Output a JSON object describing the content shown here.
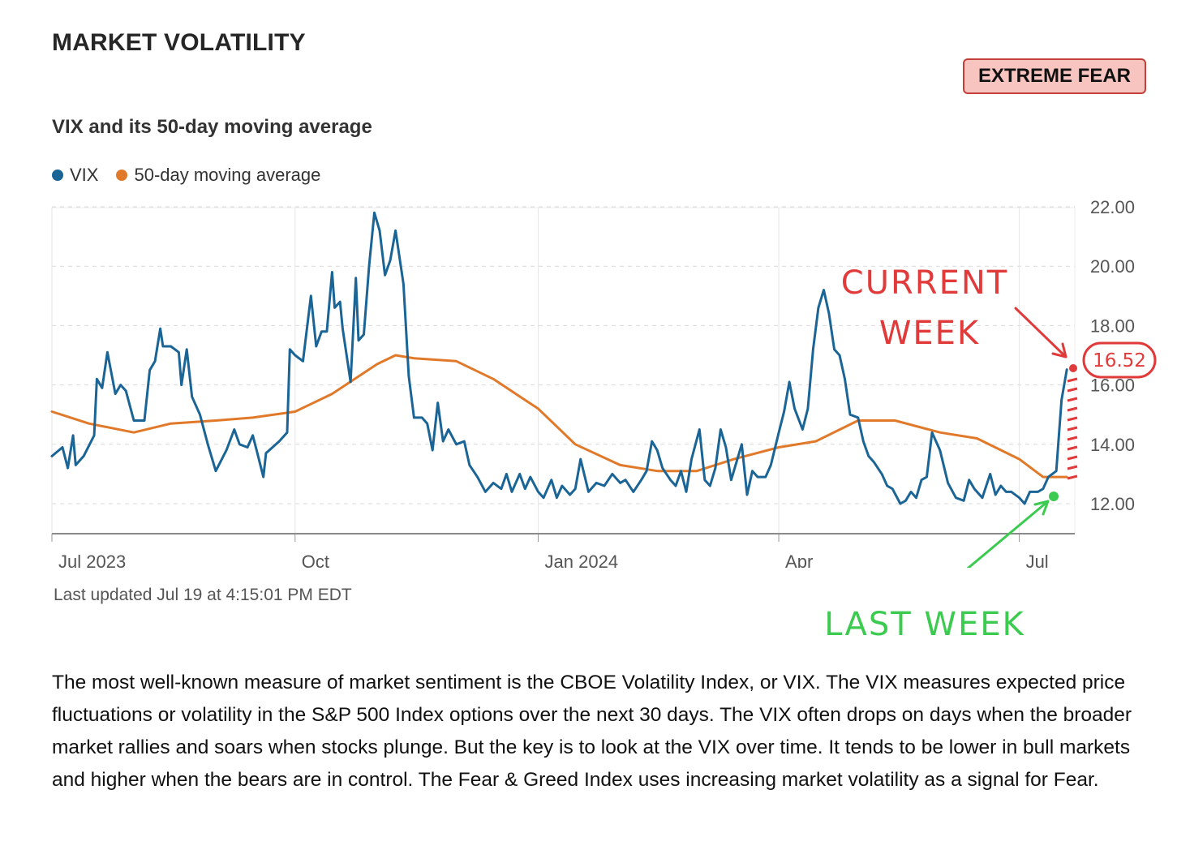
{
  "page": {
    "title": "MARKET VOLATILITY",
    "status_badge": "EXTREME FEAR",
    "last_updated": "Last updated Jul 19 at 4:15:01 PM EDT",
    "description": "The most well-known measure of market sentiment is the CBOE Volatility Index, or VIX. The VIX measures expected price fluctuations or volatility in the S&P 500 Index options over the next 30 days. The VIX often drops on days when the broader market rallies and soars when stocks plunge. But the key is to look at the VIX over time. It tends to be lower in bull markets and higher when the bears are in control. The Fear & Greed Index uses increasing market volatility as a signal for Fear."
  },
  "colors": {
    "vix": "#1b6596",
    "ma": "#e07a2a",
    "badge_bg": "#f8c4c0",
    "annotation_red": "#e03a3a",
    "annotation_green": "#3ccb50"
  },
  "annotations": {
    "current_week_line1": "CURRENT",
    "current_week_line2": "WEEK",
    "last_week": "LAST WEEK",
    "current_value": "16.52"
  },
  "chart_data": {
    "type": "line",
    "title": "VIX and its 50-day moving average",
    "legend_position": "top-left",
    "y_axis_side": "right",
    "grid": true,
    "ylim": [
      11,
      22
    ],
    "x_range": [
      "2023-07-01",
      "2024-07-22"
    ],
    "y_ticks": [
      "22.00",
      "20.00",
      "18.00",
      "16.00",
      "14.00",
      "12.00"
    ],
    "y_tick_values": [
      22,
      20,
      18,
      16,
      14,
      12
    ],
    "x_ticks": [
      {
        "label": "Jul 2023",
        "date": "2023-07-01"
      },
      {
        "label": "Oct",
        "date": "2023-10-01"
      },
      {
        "label": "Jan 2024",
        "date": "2024-01-01"
      },
      {
        "label": "Apr",
        "date": "2024-04-01"
      },
      {
        "label": "Jul",
        "date": "2024-07-01"
      }
    ],
    "series": [
      {
        "name": "VIX",
        "color": "#1b6596",
        "points": [
          [
            "2023-07-01",
            13.6
          ],
          [
            "2023-07-05",
            13.9
          ],
          [
            "2023-07-07",
            13.2
          ],
          [
            "2023-07-09",
            14.3
          ],
          [
            "2023-07-10",
            13.3
          ],
          [
            "2023-07-13",
            13.6
          ],
          [
            "2023-07-17",
            14.3
          ],
          [
            "2023-07-18",
            16.2
          ],
          [
            "2023-07-20",
            15.9
          ],
          [
            "2023-07-22",
            17.1
          ],
          [
            "2023-07-25",
            15.7
          ],
          [
            "2023-07-27",
            16.0
          ],
          [
            "2023-07-29",
            15.8
          ],
          [
            "2023-08-01",
            14.8
          ],
          [
            "2023-08-05",
            14.8
          ],
          [
            "2023-08-07",
            16.5
          ],
          [
            "2023-08-09",
            16.8
          ],
          [
            "2023-08-11",
            17.9
          ],
          [
            "2023-08-12",
            17.3
          ],
          [
            "2023-08-15",
            17.3
          ],
          [
            "2023-08-18",
            17.1
          ],
          [
            "2023-08-19",
            16.0
          ],
          [
            "2023-08-21",
            17.2
          ],
          [
            "2023-08-23",
            15.6
          ],
          [
            "2023-08-26",
            15.0
          ],
          [
            "2023-08-29",
            14.0
          ],
          [
            "2023-09-01",
            13.1
          ],
          [
            "2023-09-05",
            13.8
          ],
          [
            "2023-09-08",
            14.5
          ],
          [
            "2023-09-10",
            14.0
          ],
          [
            "2023-09-13",
            13.9
          ],
          [
            "2023-09-15",
            14.3
          ],
          [
            "2023-09-17",
            13.6
          ],
          [
            "2023-09-19",
            12.9
          ],
          [
            "2023-09-20",
            13.7
          ],
          [
            "2023-09-25",
            14.1
          ],
          [
            "2023-09-28",
            14.4
          ],
          [
            "2023-09-29",
            17.2
          ],
          [
            "2023-10-01",
            17.0
          ],
          [
            "2023-10-04",
            16.8
          ],
          [
            "2023-10-07",
            19.0
          ],
          [
            "2023-10-09",
            17.3
          ],
          [
            "2023-10-11",
            17.8
          ],
          [
            "2023-10-13",
            17.8
          ],
          [
            "2023-10-15",
            19.8
          ],
          [
            "2023-10-16",
            18.6
          ],
          [
            "2023-10-18",
            18.8
          ],
          [
            "2023-10-19",
            17.9
          ],
          [
            "2023-10-22",
            16.1
          ],
          [
            "2023-10-24",
            19.6
          ],
          [
            "2023-10-25",
            17.5
          ],
          [
            "2023-10-27",
            17.7
          ],
          [
            "2023-10-29",
            20.0
          ],
          [
            "2023-10-31",
            21.8
          ],
          [
            "2023-11-02",
            21.2
          ],
          [
            "2023-11-04",
            19.7
          ],
          [
            "2023-11-06",
            20.2
          ],
          [
            "2023-11-08",
            21.2
          ],
          [
            "2023-11-11",
            19.4
          ],
          [
            "2023-11-13",
            16.3
          ],
          [
            "2023-11-15",
            14.9
          ],
          [
            "2023-11-18",
            14.9
          ],
          [
            "2023-11-20",
            14.7
          ],
          [
            "2023-11-22",
            13.8
          ],
          [
            "2023-11-24",
            15.4
          ],
          [
            "2023-11-26",
            14.1
          ],
          [
            "2023-11-28",
            14.5
          ],
          [
            "2023-12-01",
            14.0
          ],
          [
            "2023-12-04",
            14.1
          ],
          [
            "2023-12-06",
            13.3
          ],
          [
            "2023-12-09",
            12.9
          ],
          [
            "2023-12-12",
            12.4
          ],
          [
            "2023-12-15",
            12.7
          ],
          [
            "2023-12-18",
            12.5
          ],
          [
            "2023-12-20",
            13.0
          ],
          [
            "2023-12-22",
            12.4
          ],
          [
            "2023-12-25",
            13.0
          ],
          [
            "2023-12-27",
            12.5
          ],
          [
            "2023-12-29",
            12.9
          ],
          [
            "2024-01-01",
            12.4
          ],
          [
            "2024-01-03",
            12.2
          ],
          [
            "2024-01-06",
            12.8
          ],
          [
            "2024-01-08",
            12.2
          ],
          [
            "2024-01-10",
            12.6
          ],
          [
            "2024-01-13",
            12.3
          ],
          [
            "2024-01-15",
            12.5
          ],
          [
            "2024-01-17",
            13.5
          ],
          [
            "2024-01-20",
            12.4
          ],
          [
            "2024-01-23",
            12.7
          ],
          [
            "2024-01-26",
            12.6
          ],
          [
            "2024-01-29",
            13.0
          ],
          [
            "2024-02-01",
            12.7
          ],
          [
            "2024-02-03",
            12.8
          ],
          [
            "2024-02-06",
            12.4
          ],
          [
            "2024-02-09",
            12.8
          ],
          [
            "2024-02-11",
            13.1
          ],
          [
            "2024-02-13",
            14.1
          ],
          [
            "2024-02-15",
            13.8
          ],
          [
            "2024-02-17",
            13.2
          ],
          [
            "2024-02-20",
            12.8
          ],
          [
            "2024-02-22",
            12.6
          ],
          [
            "2024-02-24",
            13.1
          ],
          [
            "2024-02-26",
            12.4
          ],
          [
            "2024-02-28",
            13.5
          ],
          [
            "2024-03-02",
            14.5
          ],
          [
            "2024-03-04",
            12.8
          ],
          [
            "2024-03-06",
            12.6
          ],
          [
            "2024-03-08",
            13.2
          ],
          [
            "2024-03-10",
            14.5
          ],
          [
            "2024-03-12",
            13.9
          ],
          [
            "2024-03-14",
            12.8
          ],
          [
            "2024-03-16",
            13.4
          ],
          [
            "2024-03-18",
            14.0
          ],
          [
            "2024-03-20",
            12.3
          ],
          [
            "2024-03-22",
            13.1
          ],
          [
            "2024-03-24",
            12.9
          ],
          [
            "2024-03-27",
            12.9
          ],
          [
            "2024-03-29",
            13.3
          ],
          [
            "2024-04-01",
            14.4
          ],
          [
            "2024-04-03",
            15.1
          ],
          [
            "2024-04-05",
            16.1
          ],
          [
            "2024-04-07",
            15.2
          ],
          [
            "2024-04-10",
            14.5
          ],
          [
            "2024-04-12",
            15.2
          ],
          [
            "2024-04-14",
            17.2
          ],
          [
            "2024-04-16",
            18.6
          ],
          [
            "2024-04-18",
            19.2
          ],
          [
            "2024-04-20",
            18.4
          ],
          [
            "2024-04-22",
            17.2
          ],
          [
            "2024-04-24",
            17.0
          ],
          [
            "2024-04-26",
            16.2
          ],
          [
            "2024-04-28",
            15.0
          ],
          [
            "2024-05-01",
            14.9
          ],
          [
            "2024-05-03",
            14.1
          ],
          [
            "2024-05-05",
            13.6
          ],
          [
            "2024-05-07",
            13.4
          ],
          [
            "2024-05-10",
            13.0
          ],
          [
            "2024-05-12",
            12.6
          ],
          [
            "2024-05-14",
            12.5
          ],
          [
            "2024-05-17",
            12.0
          ],
          [
            "2024-05-19",
            12.1
          ],
          [
            "2024-05-21",
            12.4
          ],
          [
            "2024-05-23",
            12.2
          ],
          [
            "2024-05-25",
            12.8
          ],
          [
            "2024-05-27",
            12.9
          ],
          [
            "2024-05-29",
            14.4
          ],
          [
            "2024-06-01",
            13.8
          ],
          [
            "2024-06-04",
            12.7
          ],
          [
            "2024-06-07",
            12.2
          ],
          [
            "2024-06-10",
            12.1
          ],
          [
            "2024-06-12",
            12.8
          ],
          [
            "2024-06-14",
            12.5
          ],
          [
            "2024-06-17",
            12.2
          ],
          [
            "2024-06-20",
            13.0
          ],
          [
            "2024-06-22",
            12.3
          ],
          [
            "2024-06-24",
            12.6
          ],
          [
            "2024-06-26",
            12.4
          ],
          [
            "2024-06-28",
            12.4
          ],
          [
            "2024-07-01",
            12.2
          ],
          [
            "2024-07-03",
            12.0
          ],
          [
            "2024-07-05",
            12.4
          ],
          [
            "2024-07-08",
            12.4
          ],
          [
            "2024-07-10",
            12.5
          ],
          [
            "2024-07-12",
            12.9
          ],
          [
            "2024-07-15",
            13.1
          ],
          [
            "2024-07-16",
            14.3
          ],
          [
            "2024-07-17",
            15.5
          ],
          [
            "2024-07-19",
            16.52
          ]
        ]
      },
      {
        "name": "50-day moving average",
        "color": "#e07a2a",
        "points": [
          [
            "2023-07-01",
            15.1
          ],
          [
            "2023-07-15",
            14.7
          ],
          [
            "2023-08-01",
            14.4
          ],
          [
            "2023-08-15",
            14.7
          ],
          [
            "2023-09-01",
            14.8
          ],
          [
            "2023-09-15",
            14.9
          ],
          [
            "2023-10-01",
            15.1
          ],
          [
            "2023-10-15",
            15.7
          ],
          [
            "2023-11-01",
            16.7
          ],
          [
            "2023-11-08",
            17.0
          ],
          [
            "2023-11-15",
            16.9
          ],
          [
            "2023-12-01",
            16.8
          ],
          [
            "2023-12-15",
            16.2
          ],
          [
            "2024-01-01",
            15.2
          ],
          [
            "2024-01-15",
            14.0
          ],
          [
            "2024-02-01",
            13.3
          ],
          [
            "2024-02-15",
            13.1
          ],
          [
            "2024-03-01",
            13.1
          ],
          [
            "2024-03-15",
            13.5
          ],
          [
            "2024-04-01",
            13.9
          ],
          [
            "2024-04-15",
            14.1
          ],
          [
            "2024-05-01",
            14.8
          ],
          [
            "2024-05-15",
            14.8
          ],
          [
            "2024-06-01",
            14.4
          ],
          [
            "2024-06-15",
            14.2
          ],
          [
            "2024-07-01",
            13.5
          ],
          [
            "2024-07-10",
            12.9
          ],
          [
            "2024-07-19",
            12.9
          ]
        ]
      }
    ]
  }
}
